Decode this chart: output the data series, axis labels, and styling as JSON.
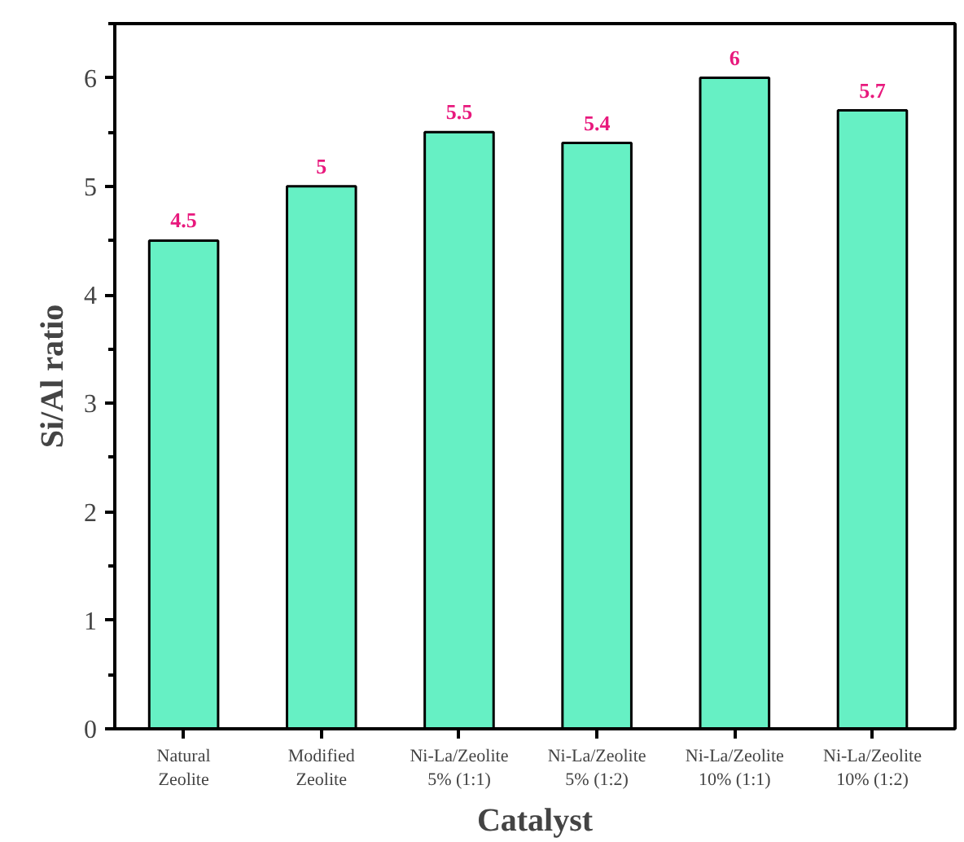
{
  "chart_data": {
    "type": "bar",
    "xlabel": "Catalyst",
    "ylabel": "Si/Al ratio",
    "categories": [
      "Natural\nZeolite",
      "Modified\nZeolite",
      "Ni-La/Zeolite\n5% (1:1)",
      "Ni-La/Zeolite\n5% (1:2)",
      "Ni-La/Zeolite\n10% (1:1)",
      "Ni-La/Zeolite\n10% (1:2)"
    ],
    "values": [
      4.5,
      5,
      5.5,
      5.4,
      6,
      5.7
    ],
    "color": "#66f0c4",
    "data_labels": true,
    "ylim": [
      0,
      6.5
    ],
    "yticks": [
      0,
      1,
      2,
      3,
      4,
      5,
      6
    ],
    "grid": false
  }
}
